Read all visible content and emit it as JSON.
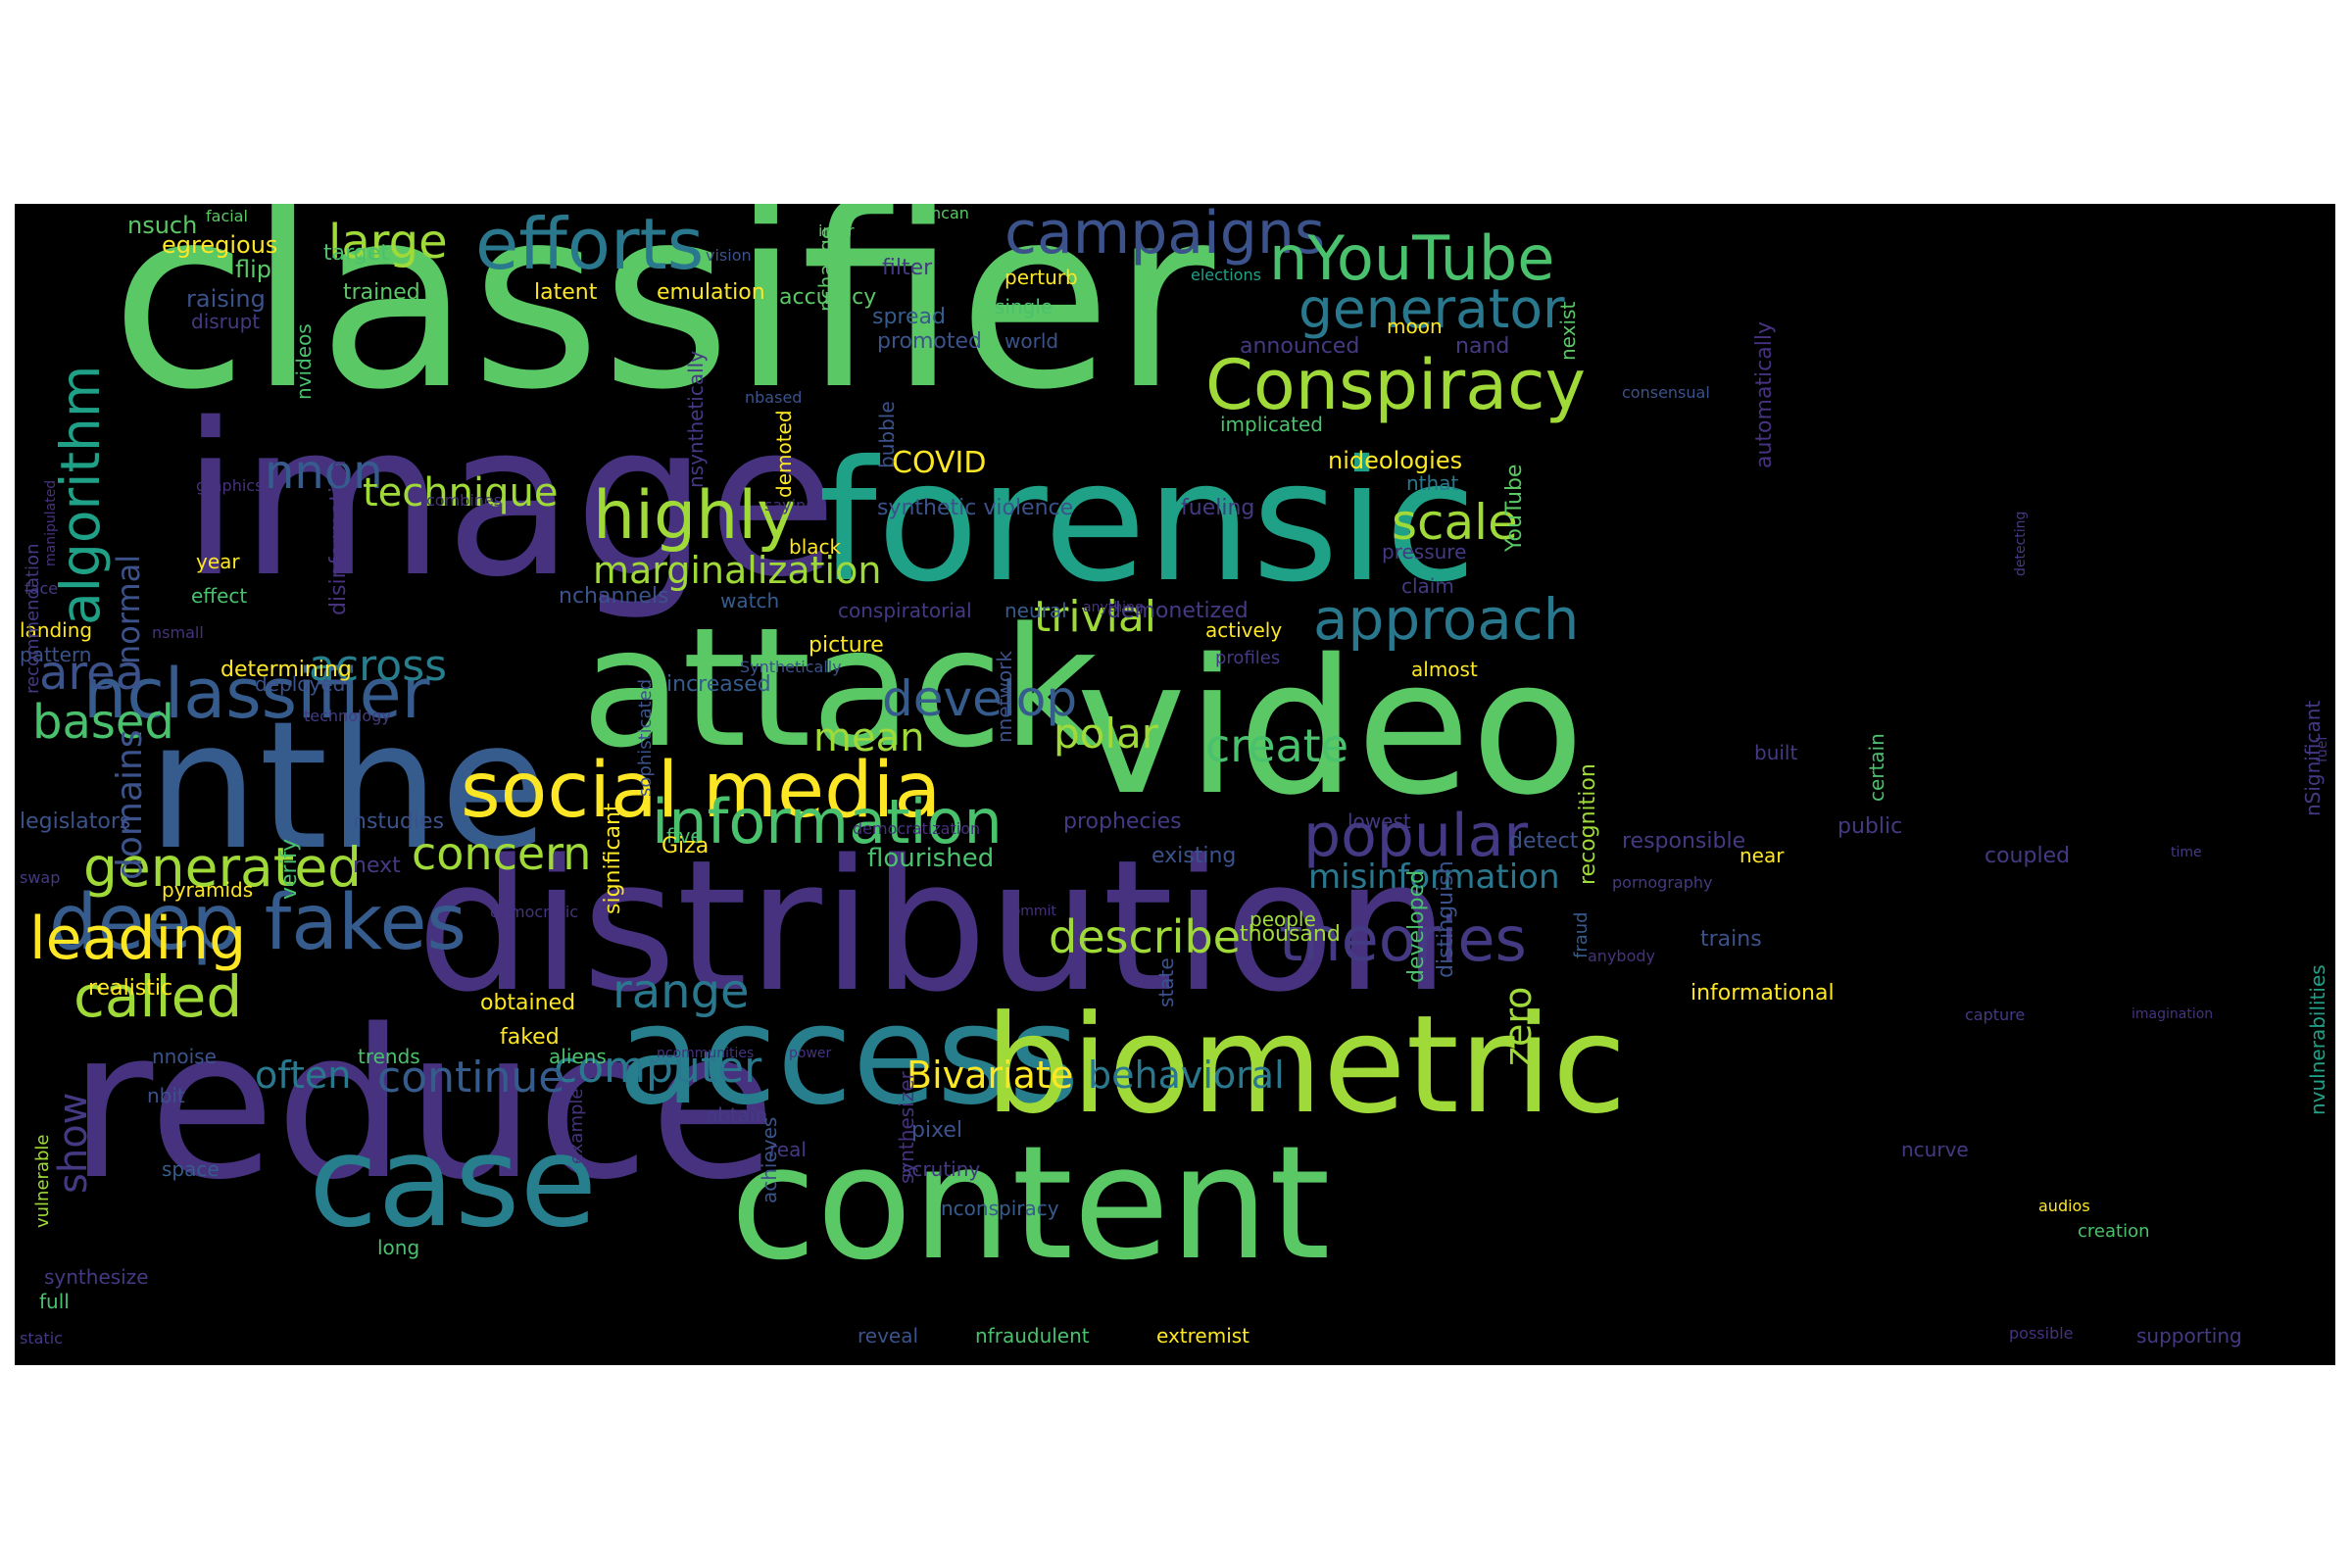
{
  "palette": [
    "#5ac865",
    "#46327e",
    "#365c8d",
    "#277f8e",
    "#1fa187",
    "#a0da39",
    "#fde725",
    "#4ac16d",
    "#443a83",
    "#2a788e",
    "#3b528b",
    "#440154"
  ],
  "words": [
    "classifier",
    "image",
    "forensic",
    "attack",
    "video",
    "nthe",
    "distribution",
    "reduce",
    "access",
    "biometric",
    "case",
    "content",
    "social media",
    "deep fakes",
    "nclassifier",
    "efforts",
    "campaigns",
    "nYouTube",
    "generator",
    "Conspiracy",
    "highly",
    "scale",
    "approach",
    "popular",
    "theories",
    "information",
    "generated",
    "leading",
    "called",
    "algorithm",
    "large",
    "nnon",
    "technique",
    "marginalization",
    "trivial",
    "develop",
    "area",
    "based",
    "across",
    "polar",
    "mean",
    "create",
    "concern",
    "range",
    "computer",
    "continue",
    "often",
    "describe",
    "misinformation",
    "behavioral",
    "Bivariate",
    "show",
    "normal",
    "domains",
    "zero",
    "COVID",
    "nsuch",
    "egregious",
    "flip",
    "raising",
    "disrupt",
    "target",
    "trained",
    "nvideos",
    "latent",
    "emulation",
    "accuracy",
    "facial",
    "ncan",
    "infor",
    "vision",
    "nchange",
    "filter",
    "spread",
    "promoted",
    "world",
    "perturb",
    "single",
    "elections",
    "moon",
    "announced",
    "nand",
    "implicated",
    "nideologies",
    "nthat",
    "YouTube",
    "pressure",
    "claim",
    "almost",
    "profiles",
    "actively",
    "demonetized",
    "fueling",
    "synthetic violence",
    "conspiratorial",
    "neural",
    "anything",
    "watch",
    "nchannels",
    "demoted",
    "black",
    "saying",
    "graphics",
    "year",
    "effect",
    "landing",
    "nsmall",
    "pattern",
    "deployed",
    "determining",
    "increased",
    "picture",
    "Synthetically",
    "nnetwork",
    "technology",
    "sophisticated",
    "nbased",
    "bubble",
    "consensual",
    "nexist",
    "automatically",
    "detecting",
    "legislators",
    "pyramids",
    "verify",
    "nstudies",
    "next",
    "democratic",
    "significant",
    "five",
    "Giza",
    "flourished",
    "democratization",
    "prophecies",
    "existing",
    "developed",
    "distinguish",
    "detect",
    "responsible",
    "public",
    "near",
    "coupled",
    "pornography",
    "fraud",
    "time",
    "fuel",
    "nSignificant",
    "swap",
    "realistic",
    "obtained",
    "faked",
    "aliens",
    "ncommunities",
    "commit",
    "people",
    "state",
    "thousand",
    "lowest",
    "recognition",
    "trains",
    "anybody",
    "informational",
    "capture",
    "nvulnerabilities",
    "imagination",
    "vulnerable",
    "nnoise",
    "trends",
    "nbit",
    "obtain",
    "example",
    "power",
    "pixel",
    "real",
    "space",
    "synthesizer",
    "achieves",
    "ncurve",
    "scrutiny",
    "nconspiracy",
    "audios",
    "creation",
    "long",
    "synthesize",
    "full",
    "static",
    "reveal",
    "nfraudulent",
    "extremist",
    "possible",
    "supporting",
    "certain",
    "built",
    "nsynthetically",
    "disinformation",
    "recommendation",
    "manipulated",
    "face",
    "combines"
  ]
}
